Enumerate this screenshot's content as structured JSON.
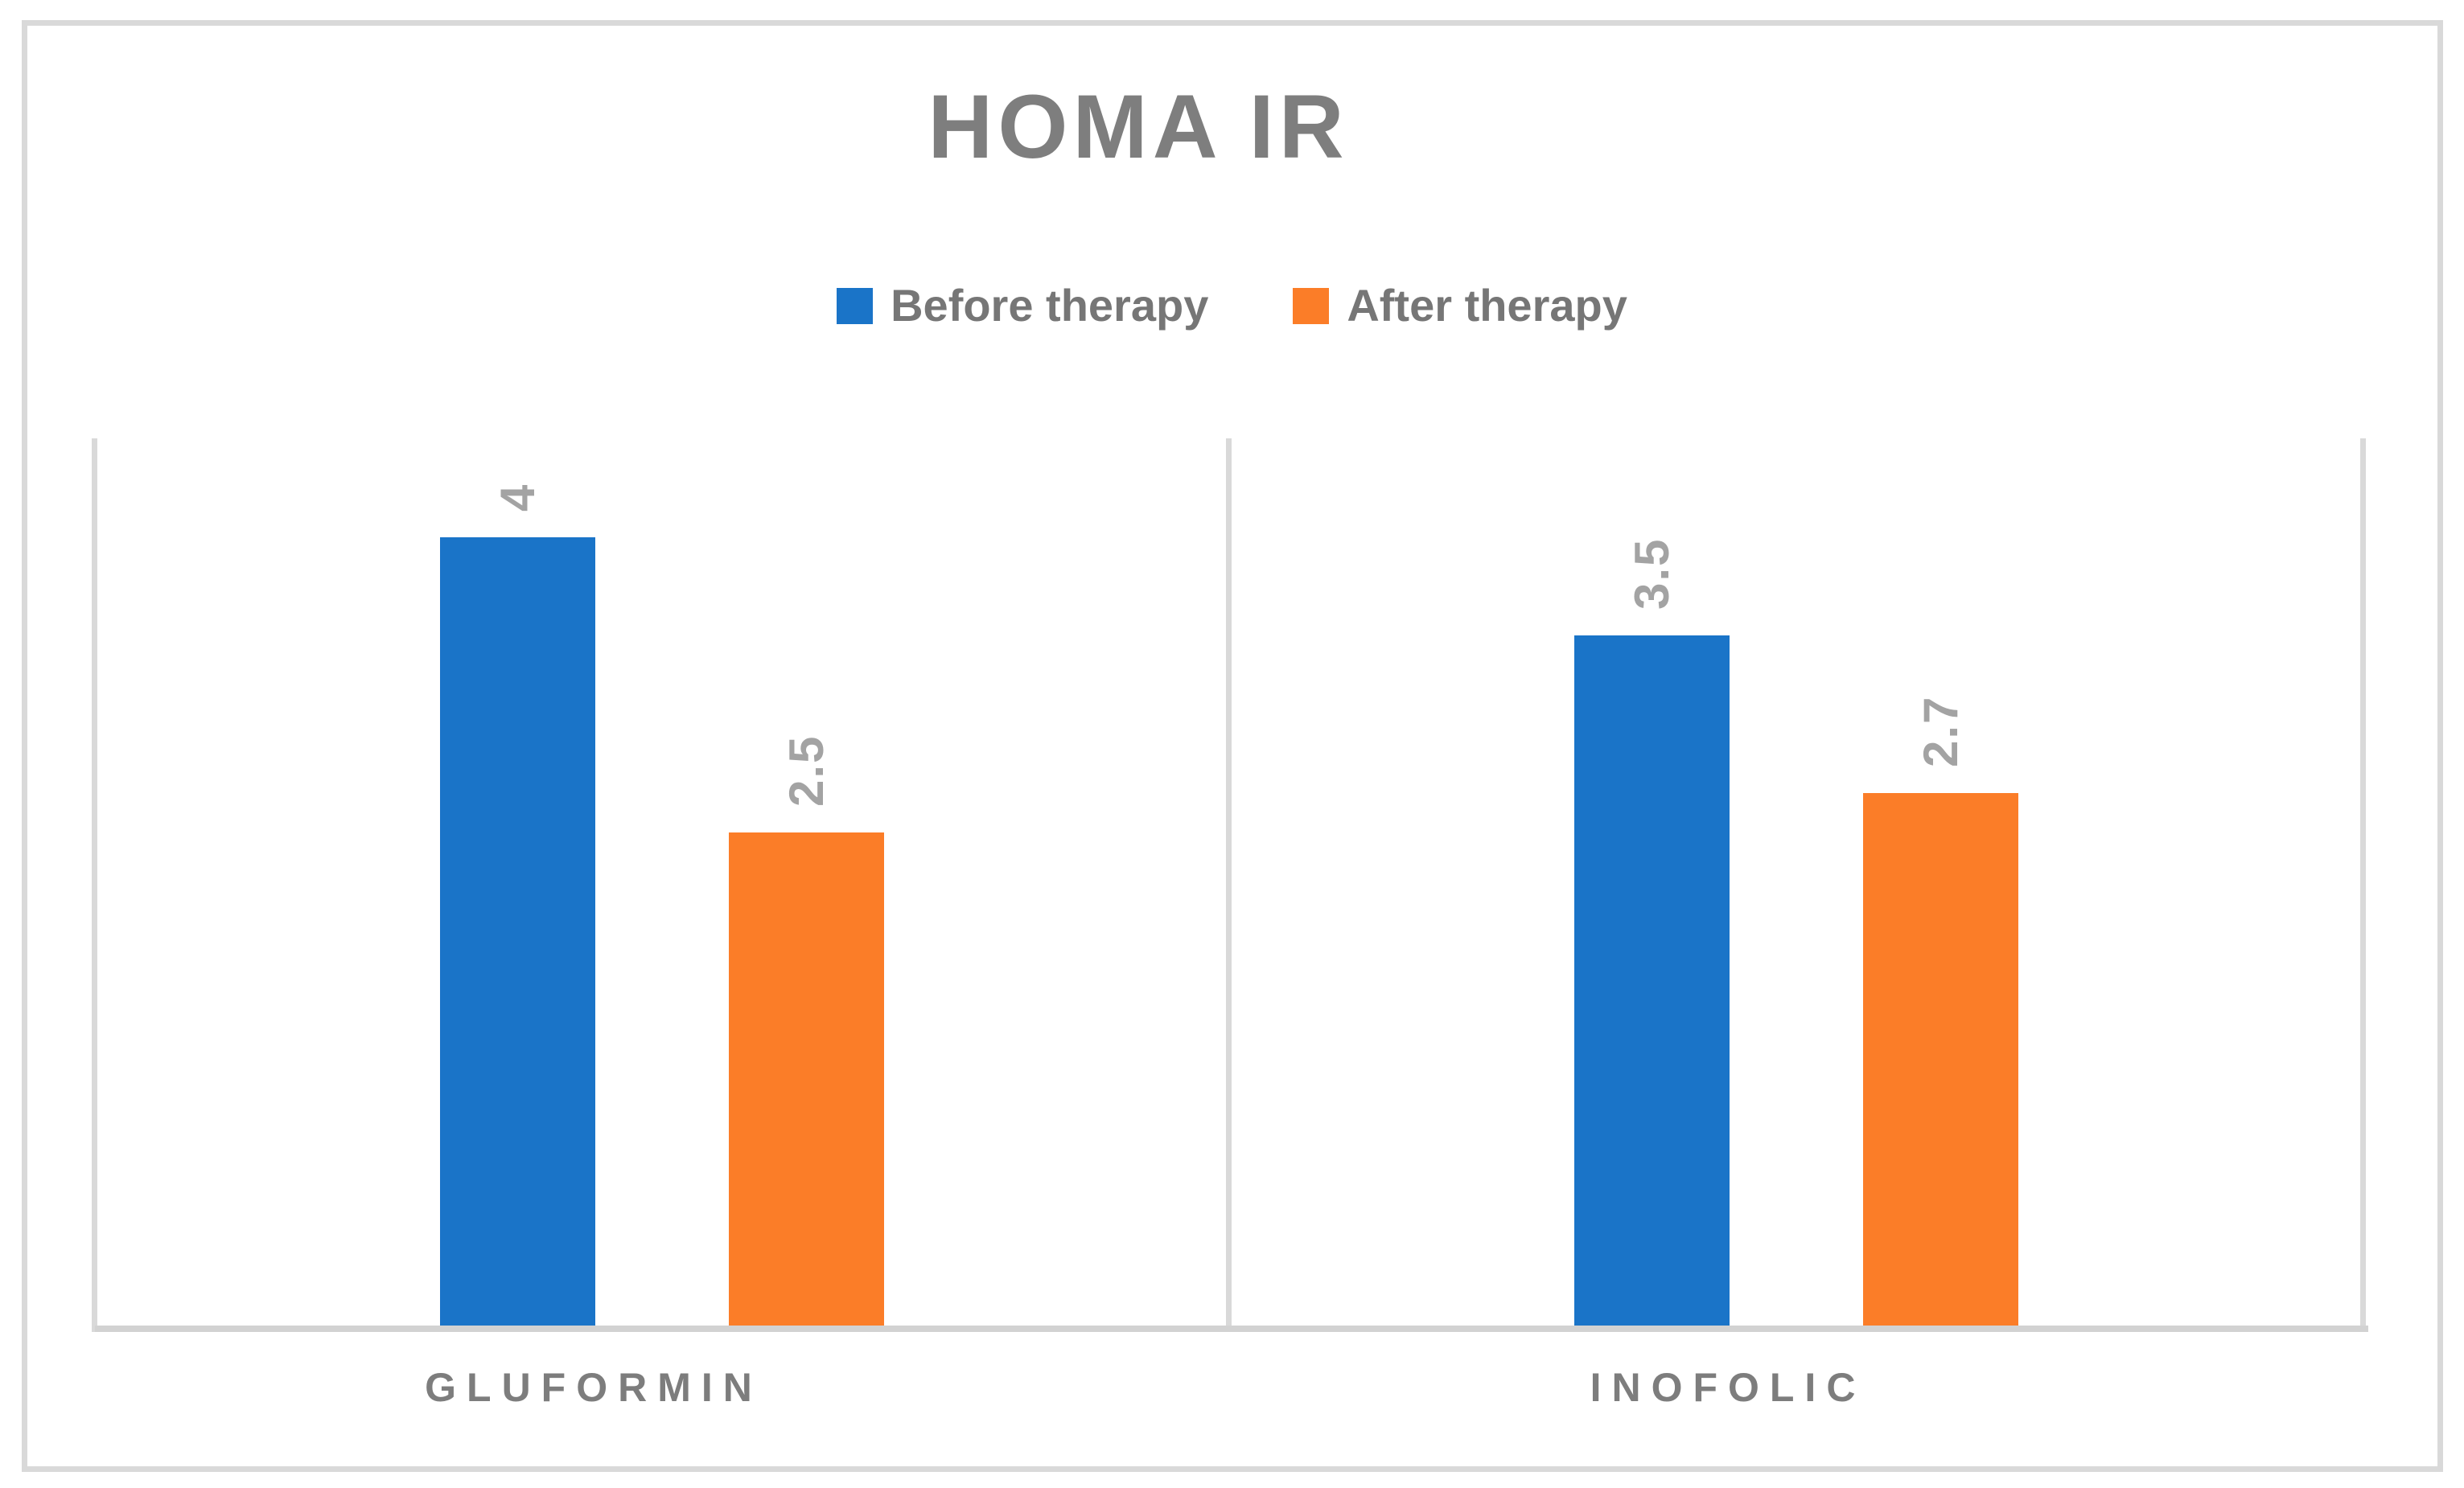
{
  "chart_data": {
    "type": "bar",
    "title": "HOMA IR",
    "categories": [
      "GLUFORMIN",
      "INOFOLIC"
    ],
    "series": [
      {
        "name": "Before therapy",
        "color": "#1A74C8",
        "values": [
          4,
          3.5
        ]
      },
      {
        "name": "After therapy",
        "color": "#FB7D28",
        "values": [
          2.5,
          2.7
        ]
      }
    ],
    "data_labels": {
      "visible": true,
      "rotation_deg": -90,
      "position": "outside-end",
      "texts": [
        [
          "4",
          "3.5"
        ],
        [
          "2.5",
          "2.7"
        ]
      ]
    },
    "ylim": [
      0,
      4.5
    ],
    "y_axis_visible": false,
    "gridlines": "vertical category boundary lines",
    "legend_position": "top-center"
  },
  "colors": {
    "bar_blue": "#1A74C8",
    "bar_orange": "#FB7D28",
    "title_text": "#7E7E7E",
    "legend_text": "#767676",
    "data_label_text": "#A3A3A3",
    "category_label_text": "#7D7D7D",
    "frame_border": "#D9D9D9",
    "axis_line": "#D2D2D2",
    "background": "#FFFFFF"
  }
}
